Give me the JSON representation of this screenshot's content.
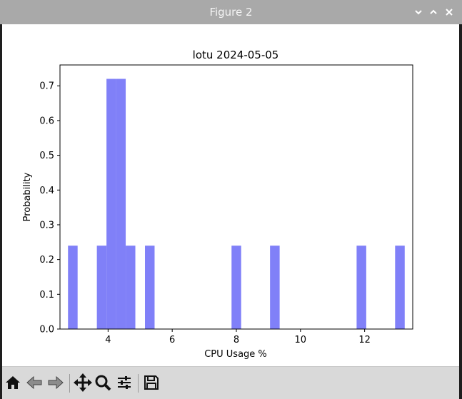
{
  "window": {
    "title": "Figure 2",
    "controls": {
      "minimize": "⌄",
      "maximize": "⌃",
      "close": "✕"
    }
  },
  "toolbar": {
    "tools": [
      {
        "name": "home-icon"
      },
      {
        "name": "back-icon"
      },
      {
        "name": "forward-icon"
      },
      {
        "name": "pan-icon"
      },
      {
        "name": "zoom-icon"
      },
      {
        "name": "configure-subplots-icon"
      },
      {
        "name": "save-icon"
      }
    ]
  },
  "chart_data": {
    "type": "bar",
    "title": "lotu 2024-05-05",
    "xlabel": "CPU Usage %",
    "ylabel": "Probability",
    "xlim": [
      2.5,
      13.5
    ],
    "ylim": [
      0,
      0.76
    ],
    "xticks": [
      4,
      6,
      8,
      10,
      12
    ],
    "yticks": [
      0.0,
      0.1,
      0.2,
      0.3,
      0.4,
      0.5,
      0.6,
      0.7
    ],
    "bin_width": 0.3,
    "bins": [
      {
        "x0": 2.75,
        "x1": 3.05,
        "value": 0.24
      },
      {
        "x0": 3.65,
        "x1": 3.95,
        "value": 0.24
      },
      {
        "x0": 3.95,
        "x1": 4.25,
        "value": 0.72
      },
      {
        "x0": 4.25,
        "x1": 4.55,
        "value": 0.72
      },
      {
        "x0": 4.55,
        "x1": 4.85,
        "value": 0.24
      },
      {
        "x0": 5.15,
        "x1": 5.45,
        "value": 0.24
      },
      {
        "x0": 7.85,
        "x1": 8.15,
        "value": 0.24
      },
      {
        "x0": 9.05,
        "x1": 9.35,
        "value": 0.24
      },
      {
        "x0": 11.75,
        "x1": 12.05,
        "value": 0.24
      },
      {
        "x0": 12.95,
        "x1": 13.25,
        "value": 0.24
      }
    ],
    "bar_color": "#8080f8",
    "grid": false
  }
}
